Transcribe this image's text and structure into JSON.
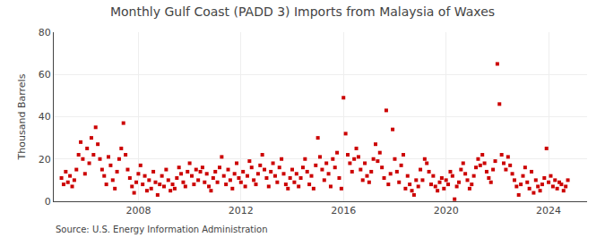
{
  "chart_data": {
    "type": "scatter",
    "title": "Monthly Gulf Coast (PADD 3) Imports from Malaysia of Waxes",
    "ylabel": "Thousand Barrels",
    "annotations": [
      "Source: U.S. Energy Information Administration"
    ],
    "color": "#cc0000",
    "marker": "square",
    "grid": true,
    "xlim": [
      2004.7,
      2025.5
    ],
    "ylim": [
      0,
      80
    ],
    "xticks": [
      2008,
      2012,
      2016,
      2020,
      2024
    ],
    "yticks": [
      0,
      20,
      40,
      60,
      80
    ],
    "x": [
      2005.0,
      2005.083,
      2005.167,
      2005.25,
      2005.333,
      2005.417,
      2005.5,
      2005.583,
      2005.667,
      2005.75,
      2005.833,
      2005.917,
      2006.0,
      2006.083,
      2006.167,
      2006.25,
      2006.333,
      2006.417,
      2006.5,
      2006.583,
      2006.667,
      2006.75,
      2006.833,
      2006.917,
      2007.0,
      2007.083,
      2007.167,
      2007.25,
      2007.333,
      2007.417,
      2007.5,
      2007.583,
      2007.667,
      2007.75,
      2007.833,
      2007.917,
      2008.0,
      2008.083,
      2008.167,
      2008.25,
      2008.333,
      2008.417,
      2008.5,
      2008.583,
      2008.667,
      2008.75,
      2008.833,
      2008.917,
      2009.0,
      2009.083,
      2009.167,
      2009.25,
      2009.333,
      2009.417,
      2009.5,
      2009.583,
      2009.667,
      2009.75,
      2009.833,
      2009.917,
      2010.0,
      2010.083,
      2010.167,
      2010.25,
      2010.333,
      2010.417,
      2010.5,
      2010.583,
      2010.667,
      2010.75,
      2010.833,
      2010.917,
      2011.0,
      2011.083,
      2011.167,
      2011.25,
      2011.333,
      2011.417,
      2011.5,
      2011.583,
      2011.667,
      2011.75,
      2011.833,
      2011.917,
      2012.0,
      2012.083,
      2012.167,
      2012.25,
      2012.333,
      2012.417,
      2012.5,
      2012.583,
      2012.667,
      2012.75,
      2012.833,
      2012.917,
      2013.0,
      2013.083,
      2013.167,
      2013.25,
      2013.333,
      2013.417,
      2013.5,
      2013.583,
      2013.667,
      2013.75,
      2013.833,
      2013.917,
      2014.0,
      2014.083,
      2014.167,
      2014.25,
      2014.333,
      2014.417,
      2014.5,
      2014.583,
      2014.667,
      2014.75,
      2014.833,
      2014.917,
      2015.0,
      2015.083,
      2015.167,
      2015.25,
      2015.333,
      2015.417,
      2015.5,
      2015.583,
      2015.667,
      2015.75,
      2015.833,
      2015.917,
      2016.0,
      2016.083,
      2016.167,
      2016.25,
      2016.333,
      2016.417,
      2016.5,
      2016.583,
      2016.667,
      2016.75,
      2016.833,
      2016.917,
      2017.0,
      2017.083,
      2017.167,
      2017.25,
      2017.333,
      2017.417,
      2017.5,
      2017.583,
      2017.667,
      2017.75,
      2017.833,
      2017.917,
      2018.0,
      2018.083,
      2018.167,
      2018.25,
      2018.333,
      2018.417,
      2018.5,
      2018.583,
      2018.667,
      2018.75,
      2018.833,
      2018.917,
      2019.0,
      2019.083,
      2019.167,
      2019.25,
      2019.333,
      2019.417,
      2019.5,
      2019.583,
      2019.667,
      2019.75,
      2019.833,
      2019.917,
      2020.0,
      2020.083,
      2020.167,
      2020.25,
      2020.333,
      2020.417,
      2020.5,
      2020.583,
      2020.667,
      2020.75,
      2020.833,
      2020.917,
      2021.0,
      2021.083,
      2021.167,
      2021.25,
      2021.333,
      2021.417,
      2021.5,
      2021.583,
      2021.667,
      2021.75,
      2021.833,
      2021.917,
      2022.0,
      2022.083,
      2022.167,
      2022.25,
      2022.333,
      2022.417,
      2022.5,
      2022.583,
      2022.667,
      2022.75,
      2022.833,
      2022.917,
      2023.0,
      2023.083,
      2023.167,
      2023.25,
      2023.333,
      2023.417,
      2023.5,
      2023.583,
      2023.667,
      2023.75,
      2023.833,
      2023.917,
      2024.0,
      2024.083,
      2024.167,
      2024.25,
      2024.333,
      2024.417,
      2024.5,
      2024.583,
      2024.667,
      2024.75
    ],
    "values": [
      11,
      8,
      14,
      9,
      12,
      7,
      10,
      15,
      22,
      28,
      20,
      13,
      25,
      18,
      30,
      22,
      35,
      27,
      20,
      15,
      12,
      8,
      21,
      17,
      10,
      6,
      14,
      20,
      25,
      37,
      22,
      15,
      11,
      7,
      4,
      9,
      13,
      17,
      8,
      12,
      5,
      10,
      6,
      14,
      9,
      3,
      8,
      12,
      7,
      15,
      10,
      5,
      8,
      6,
      11,
      16,
      13,
      9,
      7,
      14,
      18,
      12,
      8,
      15,
      10,
      14,
      16,
      9,
      13,
      7,
      5,
      11,
      14,
      9,
      16,
      21,
      12,
      8,
      15,
      10,
      6,
      13,
      18,
      11,
      9,
      14,
      7,
      12,
      19,
      16,
      10,
      8,
      13,
      17,
      22,
      15,
      11,
      7,
      14,
      18,
      12,
      9,
      16,
      20,
      13,
      8,
      6,
      11,
      15,
      9,
      13,
      7,
      11,
      16,
      20,
      14,
      8,
      12,
      6,
      17,
      30,
      21,
      15,
      10,
      18,
      13,
      7,
      20,
      16,
      23,
      11,
      6,
      49,
      32,
      22,
      18,
      14,
      20,
      25,
      21,
      15,
      10,
      18,
      12,
      9,
      14,
      20,
      27,
      19,
      23,
      16,
      11,
      43,
      8,
      13,
      34,
      20,
      14,
      9,
      17,
      22,
      6,
      12,
      8,
      5,
      3,
      10,
      7,
      15,
      10,
      20,
      18,
      14,
      8,
      12,
      7,
      5,
      9,
      11,
      6,
      10,
      8,
      14,
      12,
      1,
      7,
      9,
      15,
      18,
      13,
      10,
      6,
      8,
      12,
      16,
      20,
      17,
      22,
      18,
      14,
      11,
      9,
      15,
      19,
      65,
      46,
      22,
      18,
      15,
      21,
      17,
      13,
      10,
      7,
      3,
      8,
      12,
      16,
      9,
      6,
      14,
      4,
      10,
      7,
      5,
      8,
      11,
      25,
      9,
      12,
      7,
      10,
      6,
      9,
      8,
      5,
      7,
      10
    ]
  }
}
